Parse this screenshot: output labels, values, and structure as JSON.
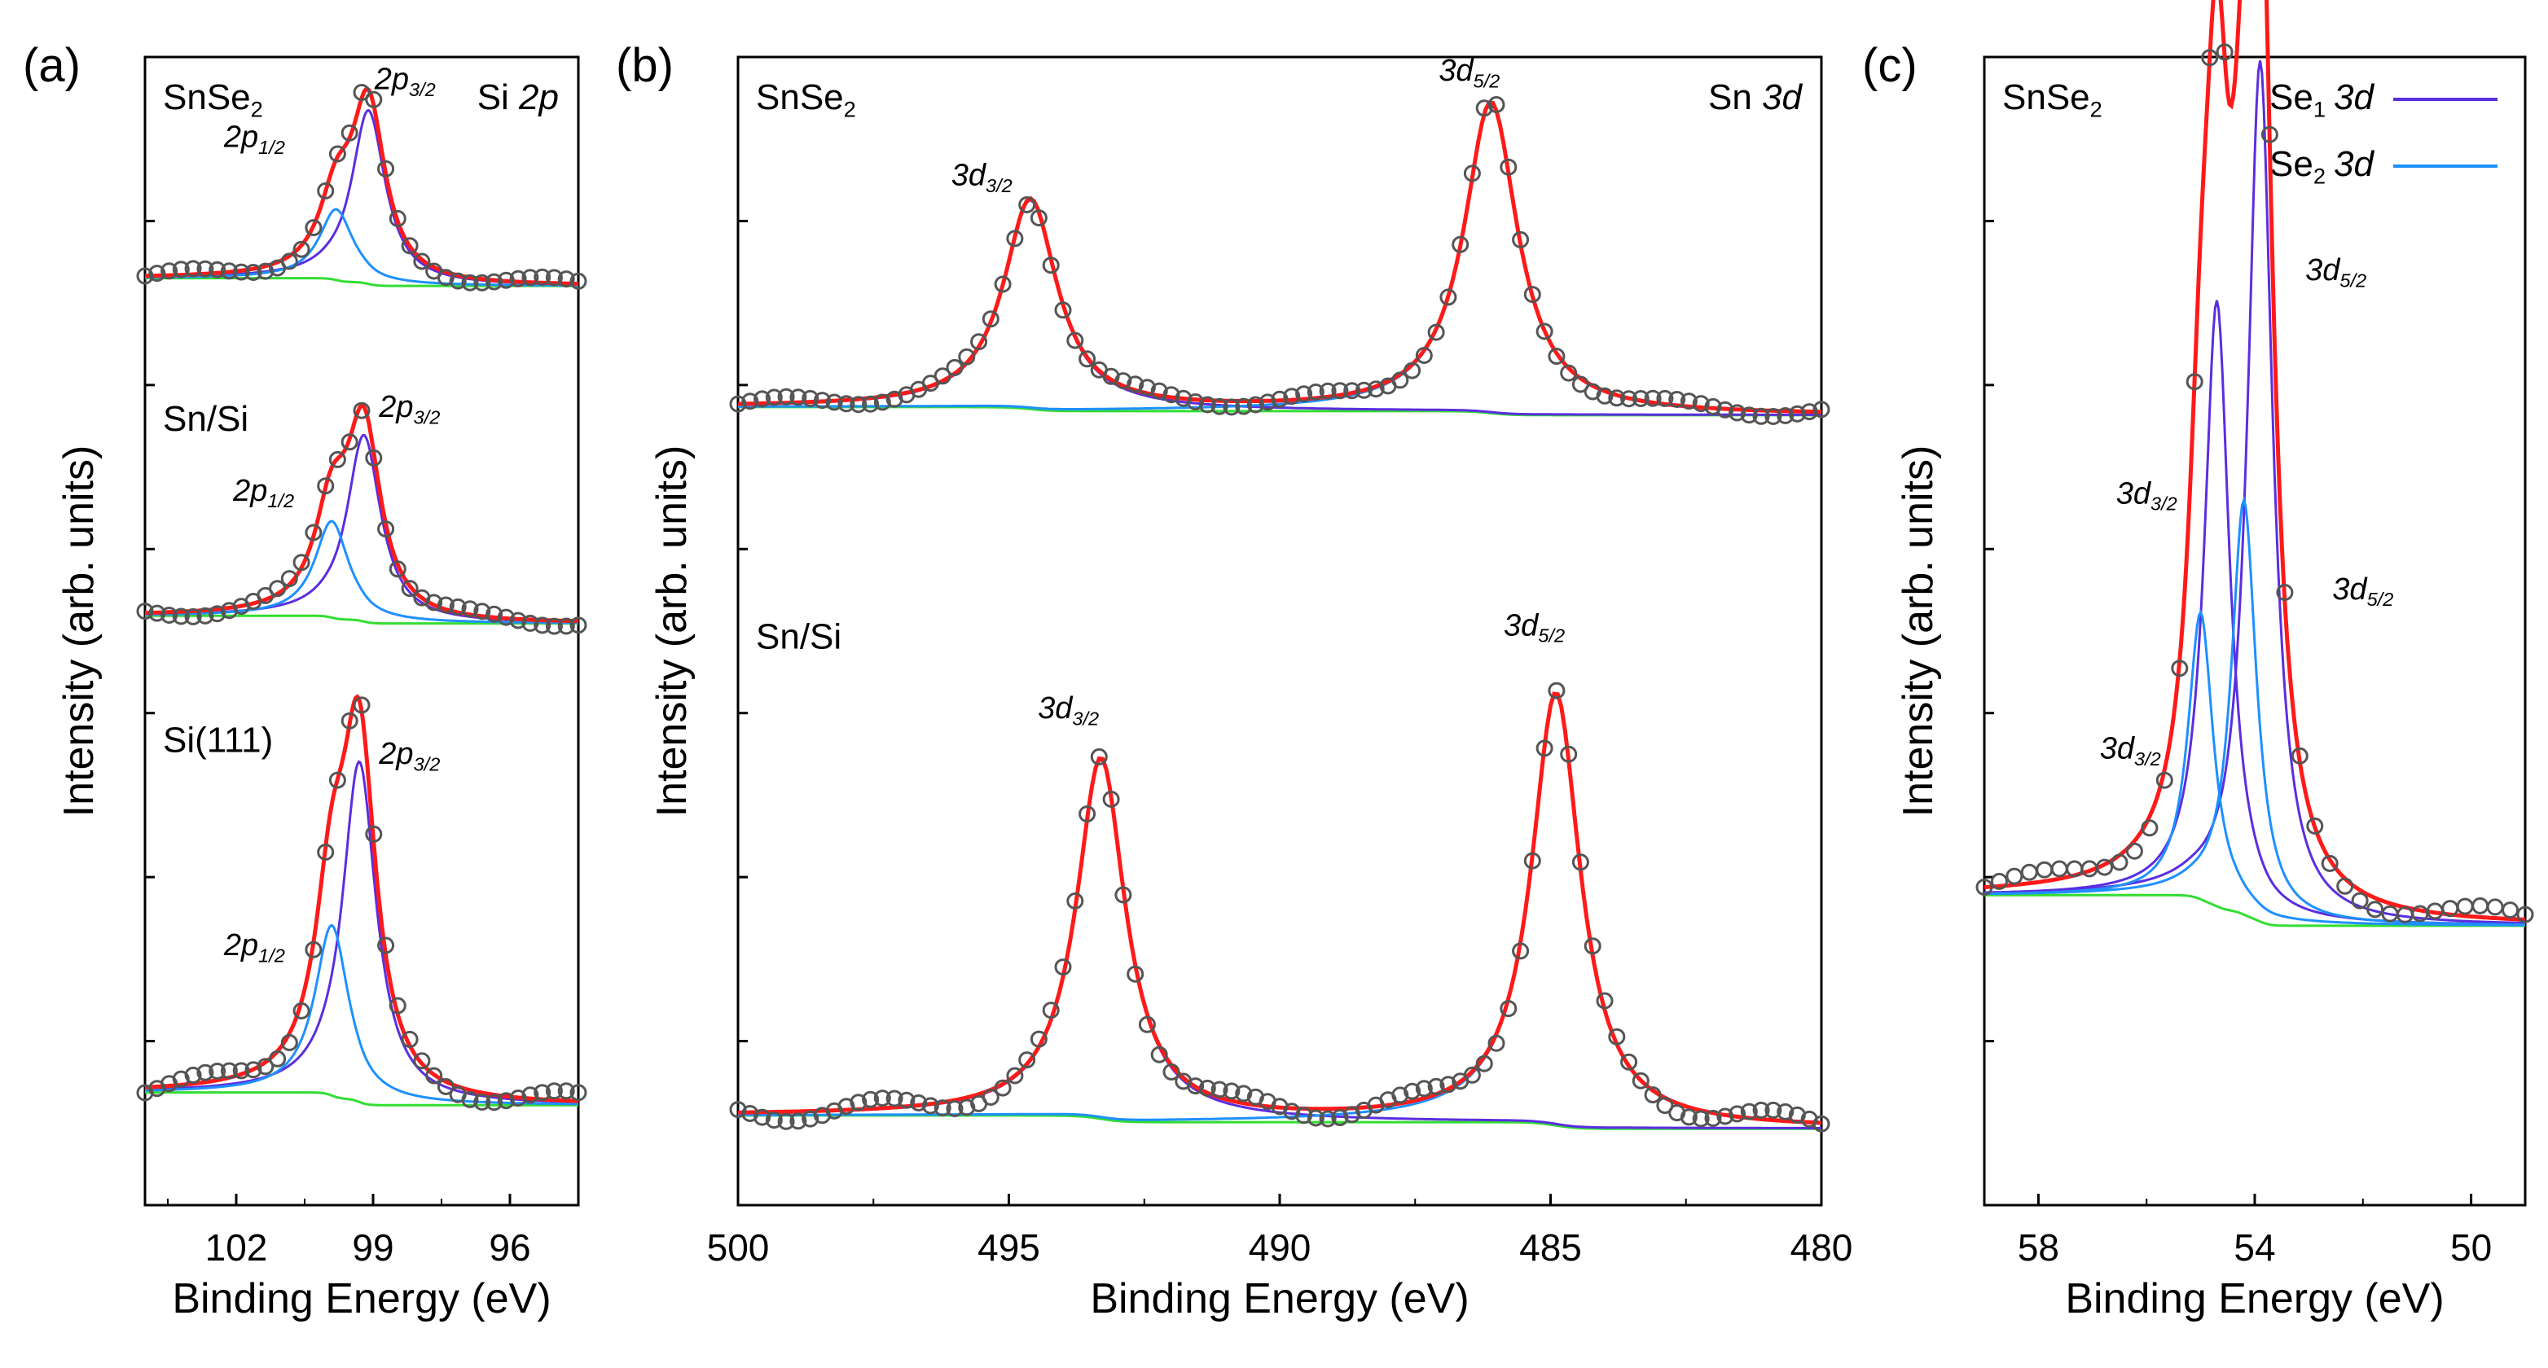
{
  "colors": {
    "data": "#555555",
    "envelope": "#ff1a1a",
    "comp1": "#5a2ee0",
    "comp2": "#1e90ff",
    "background": "#33dd33",
    "axis": "#000000"
  },
  "chart_data": [
    {
      "id": "a",
      "type": "line",
      "panel_label": "(a)",
      "title": "Si 2p",
      "xlabel": "Binding Energy (eV)",
      "ylabel": "Intensity (arb. units)",
      "xlim": [
        104,
        94.5
      ],
      "xticks": [
        102,
        99,
        96
      ],
      "xtick_labels": [
        "102",
        "99",
        "96"
      ],
      "series": [
        {
          "name": "SnSe2",
          "label": "SnSe",
          "label_sub": "2",
          "baseline": 0.3,
          "peaks": [
            {
              "name": "2p3/2",
              "center": 99.1,
              "height": 0.54,
              "width": 0.45
            },
            {
              "name": "2p1/2",
              "center": 99.8,
              "height": 0.22,
              "width": 0.45
            }
          ],
          "annotations": [
            {
              "text": "2p",
              "sub": "3/2",
              "x": 98.3,
              "y": 0.9
            },
            {
              "text": "2p",
              "sub": "1/2",
              "x": 101.6,
              "y": 0.72
            }
          ]
        },
        {
          "name": "Sn/Si",
          "label": "Sn/Si",
          "label_sub": "",
          "baseline": 0.25,
          "peaks": [
            {
              "name": "2p3/2",
              "center": 99.2,
              "height": 0.58,
              "width": 0.45
            },
            {
              "name": "2p1/2",
              "center": 99.9,
              "height": 0.3,
              "width": 0.45
            }
          ],
          "annotations": [
            {
              "text": "2p",
              "sub": "3/2",
              "x": 98.2,
              "y": 0.88
            },
            {
              "text": "2p",
              "sub": "1/2",
              "x": 101.4,
              "y": 0.62
            }
          ]
        },
        {
          "name": "Si(111)",
          "label": "Si(111)",
          "label_sub": "",
          "baseline": 0.2,
          "peaks": [
            {
              "name": "2p3/2",
              "center": 99.3,
              "height": 0.64,
              "width": 0.45
            },
            {
              "name": "2p1/2",
              "center": 99.9,
              "height": 0.32,
              "width": 0.45
            }
          ],
          "annotations": [
            {
              "text": "2p",
              "sub": "3/2",
              "x": 98.2,
              "y": 0.83
            },
            {
              "text": "2p",
              "sub": "1/2",
              "x": 101.6,
              "y": 0.47
            }
          ]
        }
      ]
    },
    {
      "id": "b",
      "type": "line",
      "panel_label": "(b)",
      "title": "Sn 3d",
      "xlabel": "Binding Energy (eV)",
      "ylabel": "Intensity (arb. units)",
      "xlim": [
        500,
        480
      ],
      "xticks": [
        500,
        495,
        490,
        485,
        480
      ],
      "xtick_labels": [
        "500",
        "495",
        "490",
        "485",
        "480"
      ],
      "series": [
        {
          "name": "SnSe2",
          "label": "SnSe",
          "label_sub": "2",
          "baseline": 0.55,
          "peaks": [
            {
              "name": "3d3/2",
              "center": 494.6,
              "height": 0.62,
              "width": 0.6
            },
            {
              "name": "3d5/2",
              "center": 486.1,
              "height": 0.92,
              "width": 0.6
            }
          ],
          "annotations": [
            {
              "text": "3d",
              "sub": "3/2",
              "x": 495.5,
              "y": 1.22
            },
            {
              "text": "3d",
              "sub": "5/2",
              "x": 486.5,
              "y": 1.53
            }
          ]
        },
        {
          "name": "Sn/Si",
          "label": "Sn/Si",
          "label_sub": "",
          "baseline": 0.15,
          "peaks": [
            {
              "name": "3d3/2",
              "center": 493.3,
              "height": 0.65,
              "width": 0.55
            },
            {
              "name": "3d5/2",
              "center": 484.9,
              "height": 0.78,
              "width": 0.55
            }
          ],
          "annotations": [
            {
              "text": "3d",
              "sub": "3/2",
              "x": 493.9,
              "y": 0.88
            },
            {
              "text": "3d",
              "sub": "5/2",
              "x": 485.3,
              "y": 1.03
            }
          ]
        }
      ]
    },
    {
      "id": "c",
      "type": "line",
      "panel_label": "(c)",
      "title": "",
      "xlabel": "Binding Energy (eV)",
      "ylabel": "Intensity (arb. units)",
      "xlim": [
        59,
        49
      ],
      "xticks": [
        58,
        54,
        50
      ],
      "xtick_labels": [
        "58",
        "54",
        "50"
      ],
      "legend": [
        {
          "text": "Se",
          "sub": "1",
          "suffix": "3d",
          "color_key": "comp1"
        },
        {
          "text": "Se",
          "sub": "2",
          "suffix": "3d",
          "color_key": "comp2"
        }
      ],
      "series": [
        {
          "name": "SnSe2",
          "label": "SnSe",
          "label_sub": "2",
          "baseline": 0.45,
          "peaks": [
            {
              "name": "Se1 3d5/2",
              "center": 53.9,
              "height": 1.35,
              "width": 0.28,
              "comp": 1
            },
            {
              "name": "Se1 3d3/2",
              "center": 54.7,
              "height": 0.95,
              "width": 0.28,
              "comp": 1
            },
            {
              "name": "Se2 3d5/2",
              "center": 54.2,
              "height": 0.65,
              "width": 0.28,
              "comp": 2
            },
            {
              "name": "Se2 3d3/2",
              "center": 55.0,
              "height": 0.45,
              "width": 0.28,
              "comp": 2
            }
          ],
          "annotations": [
            {
              "text": "3d",
              "sub": "5/2",
              "x": 52.5,
              "y": 1.45
            },
            {
              "text": "3d",
              "sub": "3/2",
              "x": 56.0,
              "y": 1.1
            },
            {
              "text": "3d",
              "sub": "5/2",
              "x": 52.0,
              "y": 0.95
            },
            {
              "text": "3d",
              "sub": "3/2",
              "x": 56.3,
              "y": 0.7
            }
          ]
        }
      ]
    }
  ]
}
